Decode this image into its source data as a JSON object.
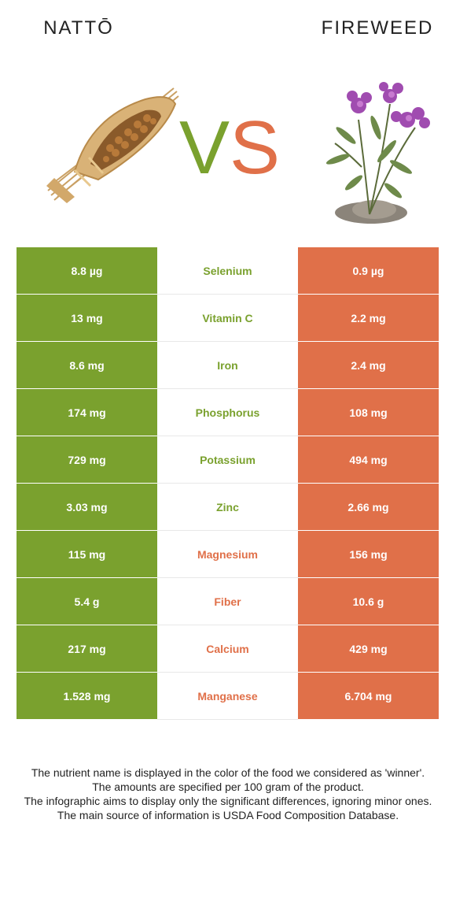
{
  "header": {
    "left_title": "NATTŌ",
    "right_title": "FIREWEED",
    "vs_v": "V",
    "vs_s": "S"
  },
  "colors": {
    "left": "#7aa12e",
    "right": "#e07049"
  },
  "images": {
    "left": "natto-straw-bundle-image",
    "right": "fireweed-plant-image"
  },
  "rows": [
    {
      "left": "8.8 µg",
      "nutrient": "Selenium",
      "right": "0.9 µg",
      "winner": "left"
    },
    {
      "left": "13 mg",
      "nutrient": "Vitamin C",
      "right": "2.2 mg",
      "winner": "left"
    },
    {
      "left": "8.6 mg",
      "nutrient": "Iron",
      "right": "2.4 mg",
      "winner": "left"
    },
    {
      "left": "174 mg",
      "nutrient": "Phosphorus",
      "right": "108 mg",
      "winner": "left"
    },
    {
      "left": "729 mg",
      "nutrient": "Potassium",
      "right": "494 mg",
      "winner": "left"
    },
    {
      "left": "3.03 mg",
      "nutrient": "Zinc",
      "right": "2.66 mg",
      "winner": "left"
    },
    {
      "left": "115 mg",
      "nutrient": "Magnesium",
      "right": "156 mg",
      "winner": "right"
    },
    {
      "left": "5.4 g",
      "nutrient": "Fiber",
      "right": "10.6 g",
      "winner": "right"
    },
    {
      "left": "217 mg",
      "nutrient": "Calcium",
      "right": "429 mg",
      "winner": "right"
    },
    {
      "left": "1.528 mg",
      "nutrient": "Manganese",
      "right": "6.704 mg",
      "winner": "right"
    }
  ],
  "footer": [
    "The nutrient name is displayed in the color of the food we considered as 'winner'.",
    "The amounts are specified per 100 gram of the product.",
    "The infographic aims to display only the significant differences, ignoring minor ones.",
    "The main source of information is USDA Food Composition Database."
  ]
}
